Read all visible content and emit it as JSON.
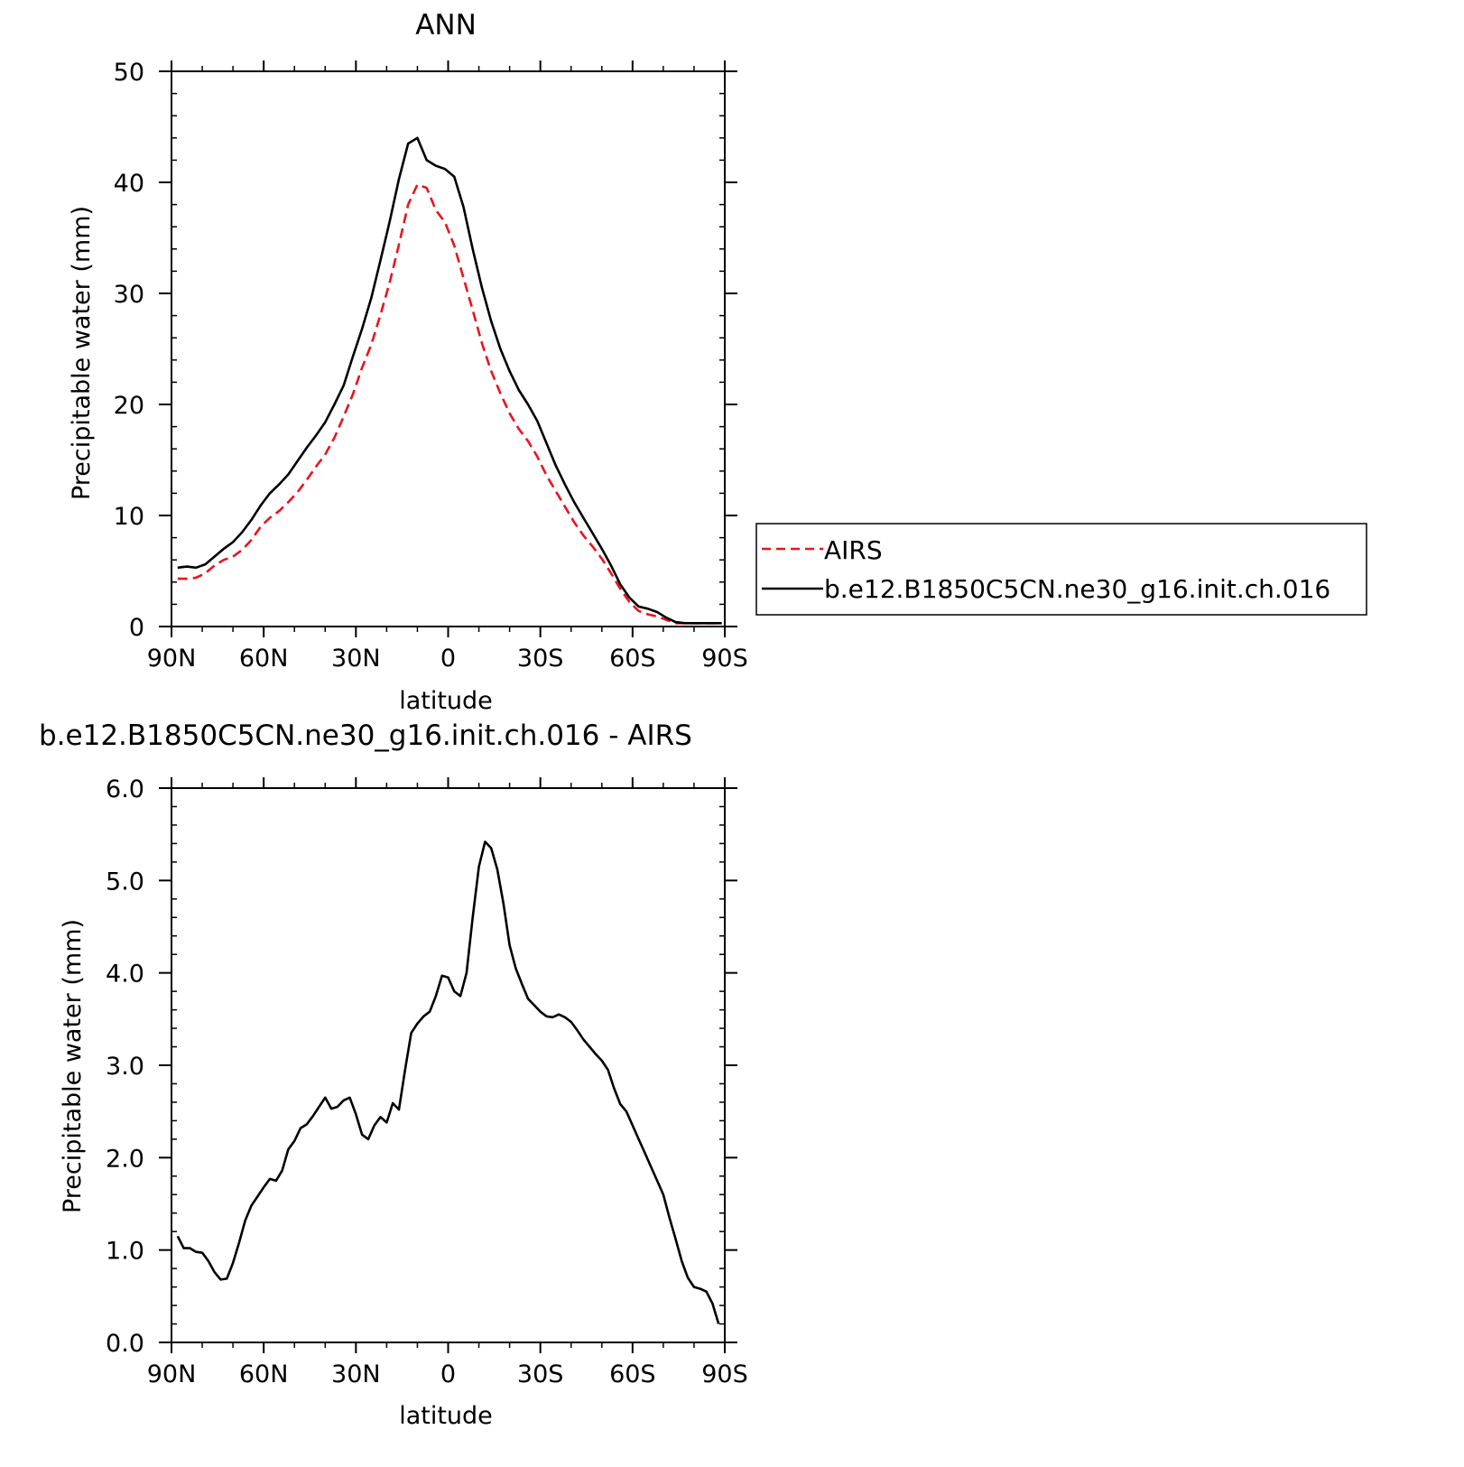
{
  "chart_data": [
    {
      "type": "line",
      "title": "ANN",
      "xlabel": "latitude",
      "ylabel": "Precipitable water (mm)",
      "xlim": [
        -90,
        90
      ],
      "ylim": [
        0,
        50
      ],
      "x_reversed": true,
      "xticks": [
        -90,
        -60,
        -30,
        0,
        30,
        60,
        90
      ],
      "xtick_labels": [
        "90N",
        "60N",
        "30N",
        "0",
        "30S",
        "60S",
        "90S"
      ],
      "yticks": [
        0,
        10,
        20,
        30,
        40,
        50
      ],
      "ytick_labels": [
        "0",
        "10",
        "20",
        "30",
        "40",
        "50"
      ],
      "grid": false,
      "legend_position": "right",
      "series": [
        {
          "name": "AIRS",
          "color": "#e8141e",
          "dash": "dashed",
          "x": [
            -88,
            -85,
            -82,
            -79,
            -76,
            -73,
            -70,
            -67,
            -64,
            -61,
            -58,
            -55,
            -52,
            -49,
            -46,
            -43,
            -40,
            -37,
            -34,
            -31,
            -28,
            -25,
            -22,
            -19,
            -16,
            -13,
            -10,
            -7,
            -4,
            -1,
            2,
            5,
            8,
            11,
            14,
            17,
            20,
            23,
            26,
            29,
            32,
            35,
            38,
            41,
            44,
            47,
            50,
            53,
            56,
            59,
            62,
            65,
            68,
            71,
            74,
            77,
            80,
            83,
            86,
            89
          ],
          "y": [
            4.3,
            4.3,
            4.4,
            4.8,
            5.5,
            6.0,
            6.3,
            6.9,
            7.8,
            9.0,
            9.8,
            10.4,
            11.2,
            12.1,
            13.2,
            14.4,
            15.5,
            17.0,
            18.9,
            20.9,
            23.3,
            25.4,
            28.1,
            31.0,
            34.4,
            38.0,
            39.8,
            39.5,
            37.5,
            36.4,
            34.3,
            31.4,
            28.5,
            25.5,
            23.0,
            21.0,
            19.2,
            17.8,
            16.7,
            15.3,
            13.6,
            12.2,
            10.8,
            9.4,
            8.2,
            7.2,
            6.1,
            4.8,
            3.4,
            2.2,
            1.4,
            1.1,
            0.9,
            0.6,
            0.3,
            0.3,
            0.3,
            0.3,
            0.3,
            0.3
          ]
        },
        {
          "name": "b.e12.B1850C5CN.ne30_g16.init.ch.016",
          "color": "#000000",
          "dash": "solid",
          "x": [
            -88,
            -85,
            -82,
            -79,
            -76,
            -73,
            -70,
            -67,
            -64,
            -61,
            -58,
            -55,
            -52,
            -49,
            -46,
            -43,
            -40,
            -37,
            -34,
            -31,
            -28,
            -25,
            -22,
            -19,
            -16,
            -13,
            -10,
            -7,
            -4,
            -1,
            2,
            5,
            8,
            11,
            14,
            17,
            20,
            23,
            26,
            29,
            32,
            35,
            38,
            41,
            44,
            47,
            50,
            53,
            56,
            59,
            62,
            65,
            68,
            71,
            74,
            77,
            80,
            83,
            86,
            89
          ],
          "y": [
            5.3,
            5.4,
            5.3,
            5.6,
            6.3,
            7.0,
            7.6,
            8.5,
            9.6,
            10.9,
            12.0,
            12.8,
            13.7,
            14.9,
            16.1,
            17.2,
            18.4,
            20.0,
            21.7,
            24.3,
            26.8,
            29.6,
            33.0,
            36.5,
            40.3,
            43.5,
            44.0,
            42.0,
            41.5,
            41.2,
            40.5,
            37.8,
            34.0,
            30.5,
            27.5,
            25.0,
            23.0,
            21.3,
            20.0,
            18.5,
            16.5,
            14.5,
            12.8,
            11.2,
            9.8,
            8.4,
            7.0,
            5.5,
            3.8,
            2.6,
            1.8,
            1.6,
            1.3,
            0.8,
            0.4,
            0.3,
            0.3,
            0.3,
            0.3,
            0.3
          ]
        }
      ]
    },
    {
      "type": "line",
      "title": "b.e12.B1850C5CN.ne30_g16.init.ch.016 - AIRS",
      "xlabel": "latitude",
      "ylabel": "Precipitable water (mm)",
      "xlim": [
        -90,
        90
      ],
      "ylim": [
        0,
        6
      ],
      "x_reversed": true,
      "xticks": [
        -90,
        -60,
        -30,
        0,
        30,
        60,
        90
      ],
      "xtick_labels": [
        "90N",
        "60N",
        "30N",
        "0",
        "30S",
        "60S",
        "90S"
      ],
      "yticks": [
        0,
        1,
        2,
        3,
        4,
        5,
        6
      ],
      "ytick_labels": [
        "0.0",
        "1.0",
        "2.0",
        "3.0",
        "4.0",
        "5.0",
        "6.0"
      ],
      "grid": false,
      "series": [
        {
          "color": "#000000",
          "dash": "solid",
          "x": [
            -88,
            -86,
            -84,
            -82,
            -80,
            -78,
            -76,
            -74,
            -72,
            -70,
            -68,
            -66,
            -64,
            -62,
            -60,
            -58,
            -56,
            -54,
            -52,
            -50,
            -48,
            -46,
            -44,
            -42,
            -40,
            -38,
            -36,
            -34,
            -32,
            -30,
            -28,
            -26,
            -24,
            -22,
            -20,
            -18,
            -16,
            -14,
            -12,
            -10,
            -8,
            -6,
            -4,
            -2,
            0,
            2,
            4,
            6,
            8,
            10,
            12,
            14,
            16,
            18,
            20,
            22,
            24,
            26,
            28,
            30,
            32,
            34,
            36,
            38,
            40,
            42,
            44,
            46,
            48,
            50,
            52,
            54,
            56,
            58,
            60,
            62,
            64,
            66,
            68,
            70,
            72,
            74,
            76,
            78,
            80,
            82,
            84,
            86,
            88
          ],
          "y": [
            1.15,
            1.02,
            1.02,
            0.98,
            0.97,
            0.88,
            0.76,
            0.68,
            0.69,
            0.86,
            1.08,
            1.32,
            1.48,
            1.58,
            1.68,
            1.77,
            1.75,
            1.86,
            2.09,
            2.18,
            2.32,
            2.36,
            2.45,
            2.55,
            2.65,
            2.53,
            2.55,
            2.62,
            2.65,
            2.47,
            2.25,
            2.2,
            2.35,
            2.44,
            2.38,
            2.59,
            2.52,
            2.95,
            3.35,
            3.45,
            3.53,
            3.58,
            3.75,
            3.97,
            3.95,
            3.8,
            3.75,
            4.0,
            4.6,
            5.15,
            5.42,
            5.35,
            5.12,
            4.75,
            4.3,
            4.05,
            3.88,
            3.72,
            3.65,
            3.58,
            3.53,
            3.52,
            3.55,
            3.52,
            3.47,
            3.38,
            3.28,
            3.2,
            3.12,
            3.05,
            2.95,
            2.75,
            2.58,
            2.5,
            2.35,
            2.2,
            2.05,
            1.9,
            1.75,
            1.6,
            1.35,
            1.12,
            0.88,
            0.7,
            0.6,
            0.58,
            0.55,
            0.42,
            0.2
          ]
        }
      ]
    }
  ]
}
